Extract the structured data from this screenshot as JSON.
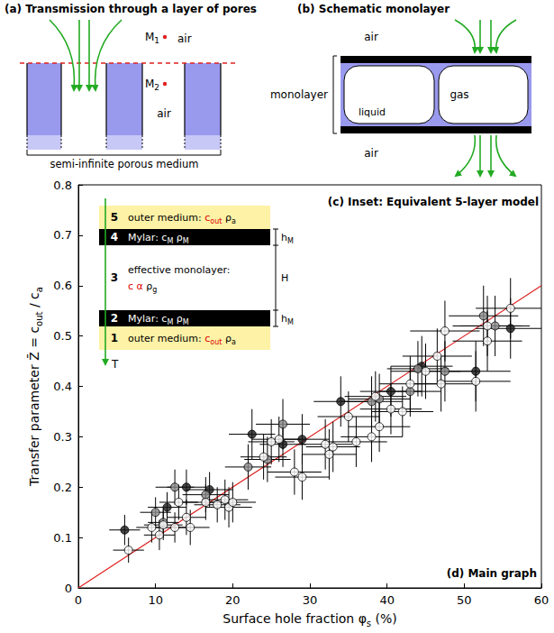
{
  "chart_data": {
    "type": "scatter",
    "xlabel": [
      {
        "text": "Surface hole fraction φ"
      },
      {
        "text": "s",
        "sub": true
      },
      {
        "text": " (%)"
      }
    ],
    "ylabel": [
      {
        "text": "Transfer parameter Z̄ = c"
      },
      {
        "text": "out",
        "sub": true
      },
      {
        "text": " / c"
      },
      {
        "text": "a",
        "sub": true
      }
    ],
    "xlim": [
      0,
      60
    ],
    "xticks": [
      0,
      10,
      20,
      30,
      40,
      50,
      60
    ],
    "ylim": [
      0,
      0.8
    ],
    "yticks": [
      0,
      0.1,
      0.2,
      0.3,
      0.4,
      0.5,
      0.6,
      0.7,
      0.8
    ],
    "grid": false,
    "annotations": [
      {
        "text": "(d) Main graph"
      }
    ],
    "series": [
      {
        "type": "line",
        "color": "#e02020",
        "line_style": "solid",
        "x": [
          0,
          60
        ],
        "values": [
          0,
          0.6
        ]
      },
      {
        "type": "scatter",
        "color": "#1a1a1a",
        "marker": "circle",
        "x": [
          6,
          11.5,
          14,
          17,
          22.5,
          26.5,
          29,
          34,
          40.5,
          44.5,
          51.5,
          56
        ],
        "values": [
          0.115,
          0.16,
          0.2,
          0.195,
          0.305,
          0.285,
          0.295,
          0.37,
          0.39,
          0.44,
          0.43,
          0.515
        ],
        "x_err": [
          2,
          2.5,
          2.5,
          3,
          3,
          3,
          3.5,
          3.5,
          4,
          4,
          4.5,
          4.5
        ],
        "y_err": [
          0.03,
          0.03,
          0.035,
          0.035,
          0.05,
          0.045,
          0.05,
          0.05,
          0.05,
          0.06,
          0.06,
          0.06
        ]
      },
      {
        "type": "scatter",
        "color": "#8c8c8c",
        "marker": "circle",
        "x": [
          10,
          11,
          12.5,
          16.5,
          22,
          24.5,
          26.5,
          38,
          39,
          43,
          44,
          47.5,
          52.5,
          54
        ],
        "values": [
          0.15,
          0.13,
          0.2,
          0.185,
          0.24,
          0.255,
          0.325,
          0.37,
          0.375,
          0.39,
          0.435,
          0.43,
          0.54,
          0.52
        ],
        "x_err": [
          2,
          2,
          2.5,
          3,
          3,
          3,
          3.5,
          4,
          4,
          4,
          4,
          4.5,
          4.5,
          4.5
        ],
        "y_err": [
          0.03,
          0.03,
          0.035,
          0.035,
          0.045,
          0.045,
          0.05,
          0.05,
          0.05,
          0.05,
          0.055,
          0.06,
          0.06,
          0.06
        ]
      },
      {
        "type": "scatter",
        "color": "#ffffff",
        "marker": "circle",
        "x": [
          6.5,
          9.5,
          10.5,
          11,
          12.5,
          13,
          14,
          14.5,
          16.5,
          18,
          19,
          19.5,
          20,
          24,
          25,
          26,
          28,
          29,
          32,
          32.5,
          33,
          35,
          36,
          38,
          38.5,
          39,
          40.5,
          42,
          43,
          45,
          46.5,
          47,
          47.5,
          51.5,
          53,
          53,
          56
        ],
        "values": [
          0.075,
          0.12,
          0.105,
          0.125,
          0.12,
          0.17,
          0.14,
          0.12,
          0.17,
          0.165,
          0.175,
          0.16,
          0.17,
          0.26,
          0.29,
          0.295,
          0.23,
          0.22,
          0.285,
          0.265,
          0.28,
          0.34,
          0.29,
          0.3,
          0.38,
          0.32,
          0.355,
          0.35,
          0.405,
          0.43,
          0.46,
          0.405,
          0.51,
          0.41,
          0.52,
          0.49,
          0.555
        ],
        "x_err": [
          2,
          2,
          2,
          2.5,
          2.5,
          2.5,
          2.5,
          2.5,
          3,
          3,
          3,
          3,
          3,
          3,
          3,
          3.5,
          3.5,
          3.5,
          3.5,
          3.5,
          3.5,
          4,
          4,
          4,
          4,
          4,
          4,
          4,
          4,
          4.5,
          4.5,
          4.5,
          4.5,
          4.5,
          4.5,
          4.5,
          4.5
        ],
        "y_err": [
          0.025,
          0.03,
          0.03,
          0.03,
          0.03,
          0.035,
          0.035,
          0.035,
          0.035,
          0.035,
          0.04,
          0.04,
          0.04,
          0.045,
          0.045,
          0.045,
          0.045,
          0.045,
          0.05,
          0.05,
          0.05,
          0.05,
          0.05,
          0.05,
          0.05,
          0.05,
          0.05,
          0.05,
          0.055,
          0.055,
          0.055,
          0.055,
          0.06,
          0.06,
          0.06,
          0.06,
          0.06
        ]
      }
    ]
  },
  "diagrams": {
    "a": {
      "title": "(a) Transmission through a layer of pores",
      "m1": [
        {
          "text": "M"
        },
        {
          "text": "1",
          "sub": true
        }
      ],
      "m2": [
        {
          "text": "M"
        },
        {
          "text": "2",
          "sub": true
        }
      ],
      "air_top": "air",
      "air_pore": "air",
      "medium": "semi-infinite porous medium"
    },
    "b": {
      "title": "(b) Schematic monolayer",
      "air_top": "air",
      "air_bottom": "air",
      "monolayer": "monolayer",
      "gas": "gas",
      "liquid": "liquid"
    },
    "c": {
      "title": "(c) Inset: Equivalent 5-layer model",
      "arrow_label": "T",
      "layers": [
        {
          "number": "5",
          "color": "#fdf2a6",
          "lines": [
            [
              {
                "text": "outer medium: "
              },
              {
                "text": "c",
                "color": "#e00000"
              },
              {
                "text": "out",
                "sub": true,
                "color": "#e00000"
              },
              {
                "text": "  ρ"
              },
              {
                "text": "a",
                "sub": true
              }
            ]
          ]
        },
        {
          "number": "4",
          "color": "#000000",
          "lines": [
            [
              {
                "text": "Mylar:  c"
              },
              {
                "text": "M",
                "sub": true
              },
              {
                "text": "  ρ"
              },
              {
                "text": "M",
                "sub": true
              }
            ]
          ]
        },
        {
          "number": "3",
          "color": "#ffffff",
          "lines": [
            [
              {
                "text": "effective monolayer:"
              }
            ],
            [
              {
                "text": "c  α",
                "color": "#e00000"
              },
              {
                "text": "  ρ"
              },
              {
                "text": "g",
                "sub": true
              }
            ]
          ]
        },
        {
          "number": "2",
          "color": "#000000",
          "lines": [
            [
              {
                "text": "Mylar:  c"
              },
              {
                "text": "M",
                "sub": true
              },
              {
                "text": "  ρ"
              },
              {
                "text": "M",
                "sub": true
              }
            ]
          ]
        },
        {
          "number": "1",
          "color": "#fdf2a6",
          "lines": [
            [
              {
                "text": "outer medium: "
              },
              {
                "text": "c",
                "color": "#e00000"
              },
              {
                "text": "out",
                "sub": true,
                "color": "#e00000"
              },
              {
                "text": "  ρ"
              },
              {
                "text": "a",
                "sub": true
              }
            ]
          ]
        }
      ],
      "dimensions": [
        [
          {
            "text": "h"
          },
          {
            "text": "M",
            "sub": true
          }
        ],
        [
          {
            "text": "H"
          }
        ],
        [
          {
            "text": "h"
          },
          {
            "text": "M",
            "sub": true
          }
        ]
      ]
    }
  }
}
